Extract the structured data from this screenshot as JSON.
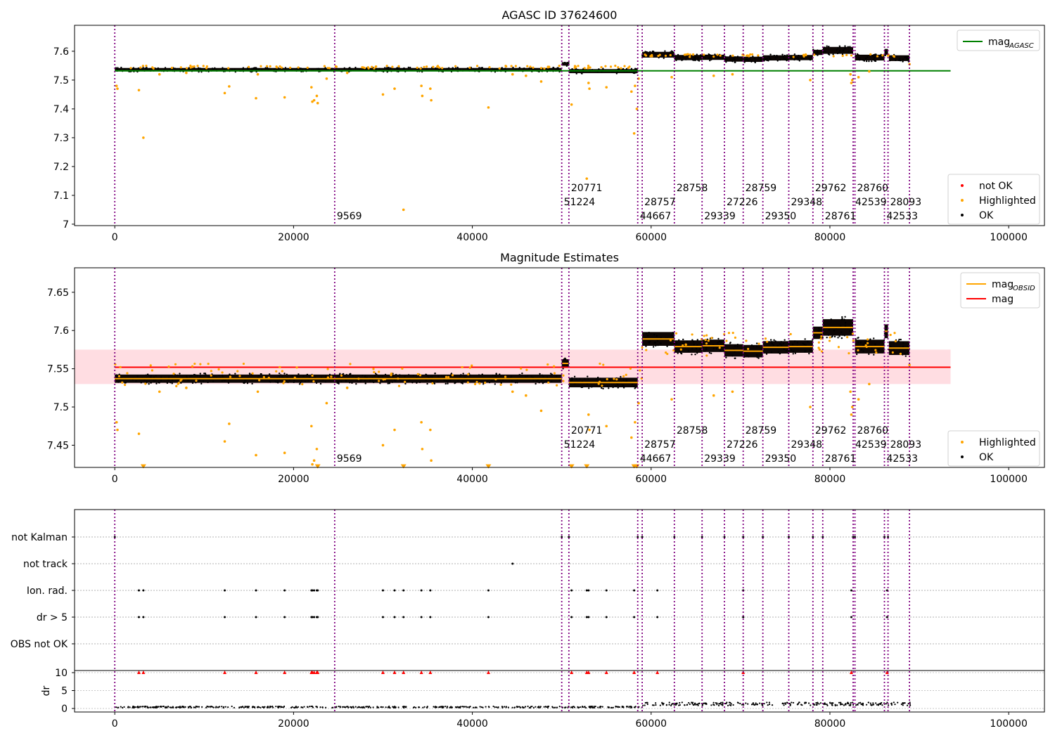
{
  "figure": {
    "title": "AGASC ID 37624600"
  },
  "chart_data": [
    {
      "type": "scatter",
      "title": "AGASC ID 37624600",
      "xlim": [
        -4500,
        104000
      ],
      "ylim": [
        6.995,
        7.69
      ],
      "yticks": [
        7.0,
        7.1,
        7.2,
        7.3,
        7.4,
        7.5,
        7.6
      ],
      "xticks": [
        0,
        20000,
        40000,
        60000,
        80000,
        100000
      ],
      "legend_upper": {
        "placement": "top-right",
        "entries": [
          {
            "label": "mag",
            "sub": "AGASC",
            "color": "#008000",
            "kind": "line"
          }
        ]
      },
      "legend_lower": {
        "placement": "bottom-right",
        "entries": [
          {
            "label": "not OK",
            "color": "#ff0000",
            "kind": "dot"
          },
          {
            "label": "Highlighted",
            "color": "#ffa500",
            "kind": "dot"
          },
          {
            "label": "OK",
            "color": "#000000",
            "kind": "dot"
          }
        ]
      },
      "hline": {
        "y": 7.532,
        "x": [
          -4500,
          93500
        ],
        "color": "#008000",
        "name": "mag AGASC"
      },
      "segments": [
        {
          "x0": 0,
          "x1": 50000,
          "y": 7.536,
          "spread": 0.006
        },
        {
          "x0": 50000,
          "x1": 50800,
          "y": 7.556,
          "spread": 0.006
        },
        {
          "x0": 50800,
          "x1": 58500,
          "y": 7.531,
          "spread": 0.007
        },
        {
          "x0": 59000,
          "x1": 62600,
          "y": 7.588,
          "spread": 0.01
        },
        {
          "x0": 62600,
          "x1": 65700,
          "y": 7.578,
          "spread": 0.009
        },
        {
          "x0": 65700,
          "x1": 68200,
          "y": 7.579,
          "spread": 0.009
        },
        {
          "x0": 68200,
          "x1": 70300,
          "y": 7.573,
          "spread": 0.009
        },
        {
          "x0": 70300,
          "x1": 72500,
          "y": 7.572,
          "spread": 0.009
        },
        {
          "x0": 72500,
          "x1": 75400,
          "y": 7.577,
          "spread": 0.009
        },
        {
          "x0": 75400,
          "x1": 78100,
          "y": 7.578,
          "spread": 0.009
        },
        {
          "x0": 78100,
          "x1": 79200,
          "y": 7.596,
          "spread": 0.009
        },
        {
          "x0": 79200,
          "x1": 82600,
          "y": 7.603,
          "spread": 0.012
        },
        {
          "x0": 82800,
          "x1": 86100,
          "y": 7.578,
          "spread": 0.01
        },
        {
          "x0": 86100,
          "x1": 86500,
          "y": 7.598,
          "spread": 0.01
        },
        {
          "x0": 86600,
          "x1": 88900,
          "y": 7.576,
          "spread": 0.01
        }
      ],
      "highlighted_points": [
        [
          200,
          7.48
        ],
        [
          300,
          7.47
        ],
        [
          2700,
          7.465
        ],
        [
          3200,
          7.3
        ],
        [
          12300,
          7.455
        ],
        [
          12800,
          7.478
        ],
        [
          15800,
          7.437
        ],
        [
          19000,
          7.44
        ],
        [
          22000,
          7.475
        ],
        [
          22100,
          7.425
        ],
        [
          22300,
          7.43
        ],
        [
          22600,
          7.445
        ],
        [
          22700,
          7.42
        ],
        [
          23700,
          7.505
        ],
        [
          30000,
          7.45
        ],
        [
          31300,
          7.47
        ],
        [
          32300,
          7.05
        ],
        [
          34300,
          7.48
        ],
        [
          34400,
          7.445
        ],
        [
          35300,
          7.47
        ],
        [
          35400,
          7.43
        ],
        [
          41800,
          7.405
        ],
        [
          47700,
          7.495
        ],
        [
          51100,
          7.415
        ],
        [
          52800,
          7.158
        ],
        [
          53000,
          7.49
        ],
        [
          53100,
          7.47
        ],
        [
          55000,
          7.475
        ],
        [
          57800,
          7.46
        ],
        [
          58100,
          7.315
        ],
        [
          58200,
          7.48
        ],
        [
          58400,
          7.4
        ],
        [
          58600,
          7.505
        ],
        [
          62300,
          7.51
        ],
        [
          67000,
          7.515
        ],
        [
          69100,
          7.52
        ],
        [
          77800,
          7.5
        ],
        [
          82300,
          7.52
        ],
        [
          82400,
          7.49
        ],
        [
          82500,
          7.5
        ],
        [
          83200,
          7.51
        ],
        [
          84400,
          7.53
        ],
        [
          88900,
          7.555
        ],
        [
          5000,
          7.52
        ],
        [
          8000,
          7.525
        ],
        [
          16000,
          7.52
        ],
        [
          26000,
          7.525
        ],
        [
          44500,
          7.52
        ],
        [
          46000,
          7.515
        ]
      ],
      "obsids": [
        {
          "x": 0,
          "label": ""
        },
        {
          "x": 24600,
          "label": "9569",
          "row": 0
        },
        {
          "x": 50000,
          "label": "51224",
          "row": 1
        },
        {
          "x": 50800,
          "label": "20771",
          "row": 2
        },
        {
          "x": 58500,
          "label": "44667",
          "row": 0
        },
        {
          "x": 59000,
          "label": "28757",
          "row": 1
        },
        {
          "x": 62600,
          "label": "28758",
          "row": 2
        },
        {
          "x": 65700,
          "label": "29339",
          "row": 0
        },
        {
          "x": 68200,
          "label": "27226",
          "row": 1
        },
        {
          "x": 70300,
          "label": "28759",
          "row": 2
        },
        {
          "x": 72500,
          "label": "29350",
          "row": 0
        },
        {
          "x": 75400,
          "label": "29348",
          "row": 1
        },
        {
          "x": 78100,
          "label": "29762",
          "row": 2
        },
        {
          "x": 79200,
          "label": "28761",
          "row": 0
        },
        {
          "x": 82600,
          "label": "42539",
          "row": 1
        },
        {
          "x": 82800,
          "label": "28760",
          "row": 2
        },
        {
          "x": 86100,
          "label": "42533",
          "row": 0
        },
        {
          "x": 86500,
          "label": "28093",
          "row": 1
        },
        {
          "x": 88900,
          "label": "",
          "row": 0
        }
      ]
    },
    {
      "type": "scatter",
      "title": "Magnitude Estimates",
      "xlim": [
        -4500,
        104000
      ],
      "ylim": [
        7.421,
        7.682
      ],
      "yticks": [
        7.45,
        7.5,
        7.55,
        7.6,
        7.65
      ],
      "xticks": [
        0,
        20000,
        40000,
        60000,
        80000,
        100000
      ],
      "legend_upper": {
        "placement": "top-right",
        "entries": [
          {
            "label": "mag",
            "sub": "OBSID",
            "color": "#ffa500",
            "kind": "line"
          },
          {
            "label": "mag",
            "sub": "",
            "color": "#ff0000",
            "kind": "line"
          }
        ]
      },
      "legend_lower": {
        "placement": "bottom-right",
        "entries": [
          {
            "label": "Highlighted",
            "color": "#ffa500",
            "kind": "dot"
          },
          {
            "label": "OK",
            "color": "#000000",
            "kind": "dot"
          }
        ]
      },
      "hline": {
        "y": 7.552,
        "x": [
          -4500,
          93500
        ],
        "color": "#ff0000",
        "band": [
          7.53,
          7.575
        ],
        "name": "mag"
      }
    },
    {
      "type": "scatter",
      "title": "",
      "xlim": [
        -4500,
        104000
      ],
      "categories": [
        "not Kalman",
        "not track",
        "Ion. rad.",
        "dr > 5",
        "OBS not OK"
      ],
      "ylabel": "dr",
      "dr_yticks": [
        0,
        5,
        10
      ],
      "xticks": [
        0,
        20000,
        40000,
        60000,
        80000,
        100000
      ],
      "flags": {
        "not Kalman": [
          0,
          50000,
          50800,
          58500,
          59000,
          62600,
          65700,
          68200,
          70300,
          72500,
          75400,
          78100,
          79200,
          82600,
          82800,
          86100,
          86500
        ],
        "not track": [
          44500
        ],
        "Ion. rad.": [
          2700,
          3200,
          12300,
          15800,
          19000,
          22000,
          22100,
          22300,
          22600,
          22700,
          30000,
          31300,
          32300,
          34300,
          35300,
          41800,
          51100,
          52800,
          53000,
          55000,
          58100,
          60700,
          70300,
          82400,
          86400
        ],
        "dr > 5": [
          2700,
          3200,
          12300,
          15800,
          19000,
          22000,
          22100,
          22300,
          22600,
          22700,
          30000,
          31300,
          32300,
          34300,
          35300,
          41800,
          51100,
          52800,
          53000,
          55000,
          58100,
          60700,
          70300,
          82400,
          86400
        ],
        "OBS not OK": []
      }
    }
  ]
}
